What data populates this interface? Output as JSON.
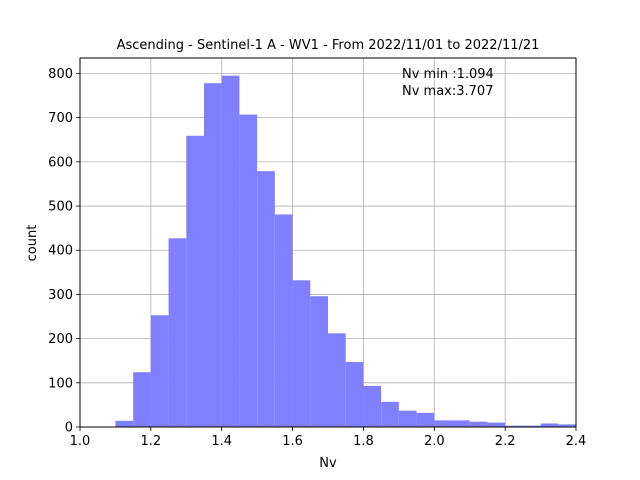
{
  "chart_data": {
    "type": "bar",
    "title": "Ascending - Sentinel-1 A - WV1 - From 2022/11/01 to 2022/11/21",
    "xlabel": "Nv",
    "ylabel": "count",
    "xlim": [
      1.0,
      2.4
    ],
    "ylim": [
      0,
      835
    ],
    "xticks": [
      "1.0",
      "1.2",
      "1.4",
      "1.6",
      "1.8",
      "2.0",
      "2.2",
      "2.4"
    ],
    "yticks": [
      "0",
      "100",
      "200",
      "300",
      "400",
      "500",
      "600",
      "700",
      "800"
    ],
    "grid": true,
    "bar_color": "#8080ff",
    "bin_width": 0.05,
    "bins": [
      {
        "x": 1.1,
        "count": 14
      },
      {
        "x": 1.15,
        "count": 124
      },
      {
        "x": 1.2,
        "count": 253
      },
      {
        "x": 1.25,
        "count": 427
      },
      {
        "x": 1.3,
        "count": 659
      },
      {
        "x": 1.35,
        "count": 778
      },
      {
        "x": 1.4,
        "count": 795
      },
      {
        "x": 1.45,
        "count": 707
      },
      {
        "x": 1.5,
        "count": 579
      },
      {
        "x": 1.55,
        "count": 481
      },
      {
        "x": 1.6,
        "count": 332
      },
      {
        "x": 1.65,
        "count": 296
      },
      {
        "x": 1.7,
        "count": 212
      },
      {
        "x": 1.75,
        "count": 147
      },
      {
        "x": 1.8,
        "count": 93
      },
      {
        "x": 1.85,
        "count": 57
      },
      {
        "x": 1.9,
        "count": 37
      },
      {
        "x": 1.95,
        "count": 32
      },
      {
        "x": 2.0,
        "count": 15
      },
      {
        "x": 2.05,
        "count": 15
      },
      {
        "x": 2.1,
        "count": 12
      },
      {
        "x": 2.15,
        "count": 10
      },
      {
        "x": 2.2,
        "count": 3
      },
      {
        "x": 2.25,
        "count": 3
      },
      {
        "x": 2.3,
        "count": 8
      },
      {
        "x": 2.35,
        "count": 6
      }
    ],
    "annotation": {
      "line1": "Nv min :1.094",
      "line2": "Nv max:3.707"
    }
  }
}
